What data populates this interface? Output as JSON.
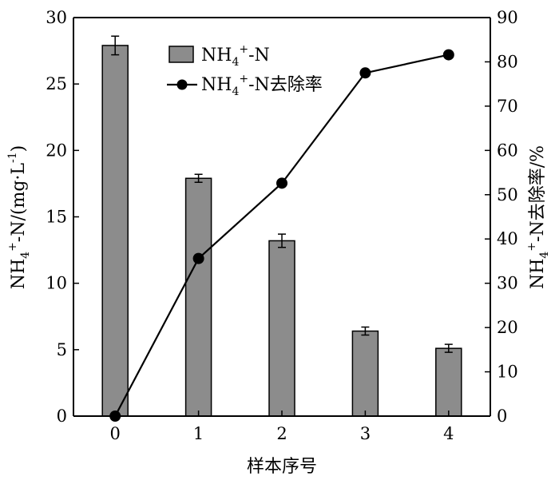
{
  "chart_data": {
    "type": "bar",
    "categories": [
      "0",
      "1",
      "2",
      "3",
      "4"
    ],
    "xlabel": "样本序号",
    "ylabel_left": {
      "base": "NH",
      "sub": "4",
      "sup": "+",
      "rest": "-N/(mg·L",
      "unit_sup": "-1",
      "close": ")"
    },
    "ylabel_right": {
      "base": "NH",
      "sub": "4",
      "sup": "+",
      "rest": "-N去除率/%"
    },
    "ylim_left": [
      0,
      30
    ],
    "ylim_right": [
      0,
      90
    ],
    "yticks_left": [
      "0",
      "5",
      "10",
      "15",
      "20",
      "25",
      "30"
    ],
    "yticks_right": [
      "0",
      "10",
      "20",
      "30",
      "40",
      "50",
      "60",
      "70",
      "80",
      "90"
    ],
    "legend_position": "top-center",
    "series": [
      {
        "name": "NH4+-N",
        "legend": {
          "base": "NH",
          "sub": "4",
          "sup": "+",
          "rest": "-N"
        },
        "type": "bar",
        "axis": "left",
        "values": [
          27.9,
          17.9,
          13.2,
          6.4,
          5.1
        ],
        "errors": [
          0.7,
          0.3,
          0.5,
          0.3,
          0.3
        ],
        "color": "#8c8c8c"
      },
      {
        "name": "NH4+-N去除率",
        "legend": {
          "base": "NH",
          "sub": "4",
          "sup": "+",
          "rest": "-N去除率"
        },
        "type": "line",
        "axis": "right",
        "values": [
          0,
          35.6,
          52.6,
          77.5,
          81.6
        ],
        "color": "#000000"
      }
    ]
  }
}
